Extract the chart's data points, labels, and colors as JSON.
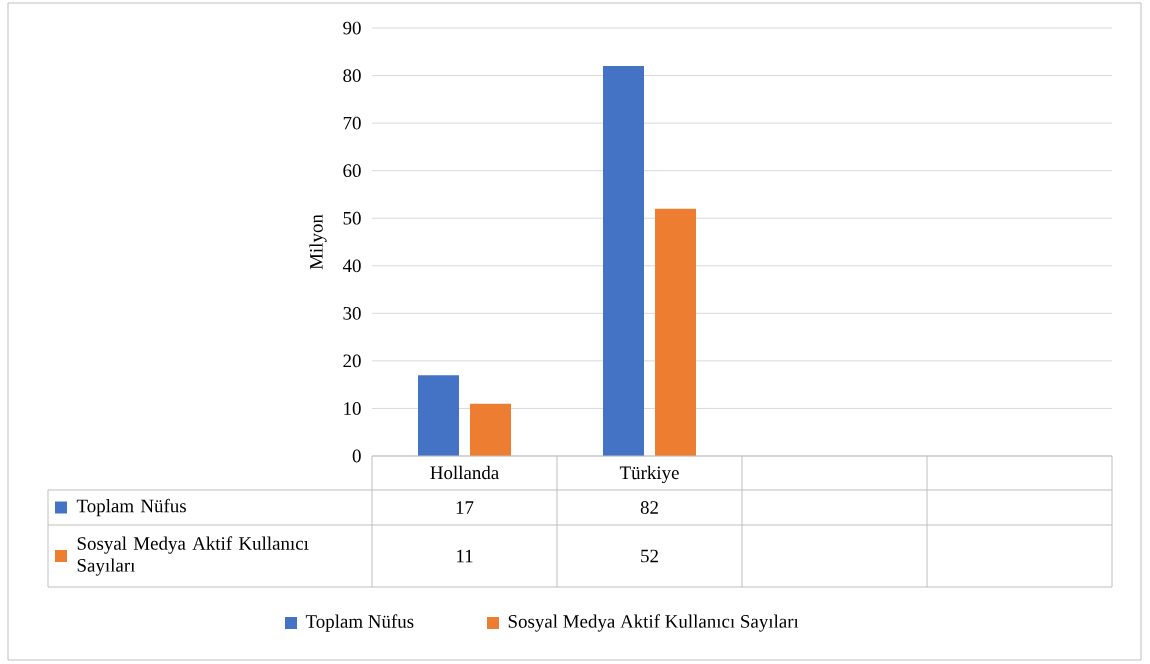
{
  "chart_data": {
    "type": "bar",
    "ylabel": "Milyon",
    "categories": [
      "Hollanda",
      "Türkiye",
      null,
      null
    ],
    "series": [
      {
        "name": "Toplam Nüfus",
        "color": "#4472c4",
        "values": [
          17,
          82,
          null,
          null
        ]
      },
      {
        "name": "Sosyal Medya Aktif Kullanıcı Sayıları",
        "color": "#ed7d31",
        "values": [
          11,
          52,
          null,
          null
        ]
      }
    ],
    "ylim": [
      0,
      90
    ],
    "yticks": [
      0,
      10,
      20,
      30,
      40,
      50,
      60,
      70,
      80,
      90
    ],
    "grid": "y",
    "legend": "bottom",
    "data_labels": true
  }
}
